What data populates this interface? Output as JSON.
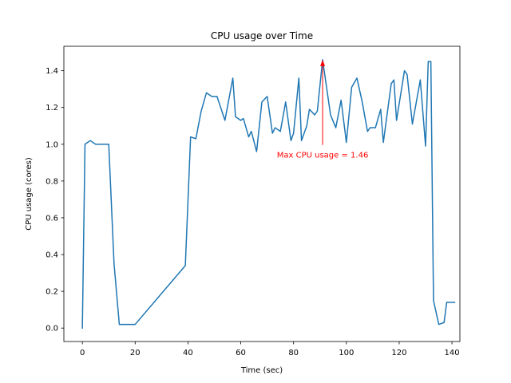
{
  "chart_data": {
    "type": "line",
    "title": "CPU usage over Time",
    "xlabel": "Time (sec)",
    "ylabel": "CPU usage (cores)",
    "xlim": [
      -7,
      143
    ],
    "ylim": [
      -0.073,
      1.533
    ],
    "xticks": [
      0,
      20,
      40,
      60,
      80,
      100,
      120,
      140
    ],
    "yticks": [
      0.0,
      0.2,
      0.4,
      0.6,
      0.8,
      1.0,
      1.2,
      1.4
    ],
    "ytick_labels": [
      "0.0",
      "0.2",
      "0.4",
      "0.6",
      "0.8",
      "1.0",
      "1.2",
      "1.4"
    ],
    "grid": false,
    "series": [
      {
        "name": "CPU usage",
        "color": "#1f77b4",
        "x": [
          0,
          1,
          3,
          5,
          7,
          9,
          10,
          12,
          14,
          16,
          18,
          20,
          39,
          41,
          43,
          45,
          47,
          49,
          51,
          54,
          57,
          58,
          60,
          61,
          63,
          64,
          66,
          68,
          70,
          72,
          73,
          75,
          77,
          79,
          80,
          82,
          83,
          85,
          86,
          88,
          89,
          91,
          92,
          94,
          96,
          98,
          100,
          102,
          104,
          106,
          108,
          109,
          111,
          113,
          114,
          117,
          118,
          119,
          122,
          123,
          125,
          127,
          128,
          130,
          131,
          132,
          133,
          135,
          137,
          138,
          139,
          140,
          141
        ],
        "y": [
          0.0,
          1.0,
          1.02,
          1.0,
          1.0,
          1.0,
          1.0,
          0.35,
          0.02,
          0.02,
          0.02,
          0.02,
          0.34,
          1.04,
          1.03,
          1.18,
          1.28,
          1.26,
          1.26,
          1.13,
          1.36,
          1.15,
          1.13,
          1.14,
          1.04,
          1.07,
          0.96,
          1.23,
          1.26,
          1.06,
          1.09,
          1.07,
          1.23,
          1.02,
          1.06,
          1.36,
          1.02,
          1.1,
          1.19,
          1.16,
          1.18,
          1.46,
          1.36,
          1.16,
          1.09,
          1.24,
          1.01,
          1.31,
          1.36,
          1.23,
          1.07,
          1.09,
          1.09,
          1.19,
          1.01,
          1.33,
          1.35,
          1.13,
          1.4,
          1.38,
          1.11,
          1.27,
          1.35,
          0.99,
          1.45,
          1.45,
          0.15,
          0.02,
          0.03,
          0.14,
          0.14,
          0.14,
          0.14
        ]
      }
    ],
    "annotations": [
      {
        "text": "Max CPU usage = 1.46",
        "color": "#ff0000",
        "xy": [
          91,
          1.46
        ],
        "xytext": [
          91,
          0.97
        ]
      }
    ]
  }
}
